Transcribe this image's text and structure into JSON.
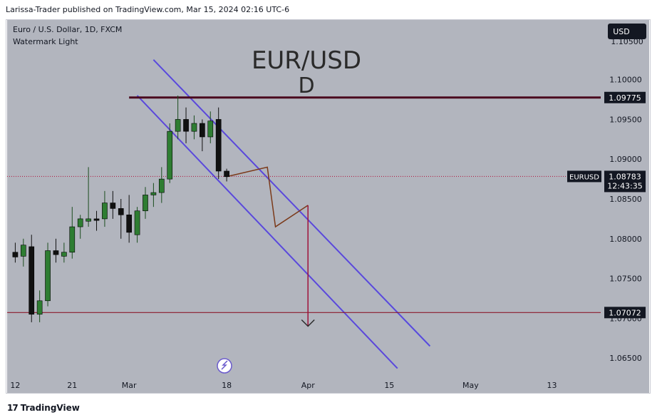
{
  "header": {
    "publisher_line": "Larissa-Trader published on TradingView.com, Mar 15, 2024 02:16 UTC-6"
  },
  "footer": {
    "brand": "TradingView",
    "logo_glyph": "17"
  },
  "chart_data": {
    "type": "candlestick",
    "symbol_line": "Euro / U.S. Dollar, 1D, FXCM",
    "watermark_label": "Watermark Light",
    "big_title": "EUR/USD",
    "big_subtitle": "D",
    "currency_badge": "USD",
    "y_ticks": [
      "1.10000",
      "1.09500",
      "1.09000",
      "1.08500",
      "1.08000",
      "1.07500",
      "1.07000",
      "1.06500"
    ],
    "y_tick_values": [
      1.1,
      1.095,
      1.09,
      1.085,
      1.08,
      1.075,
      1.07,
      1.065
    ],
    "y_top_partial": "1.10500",
    "ylim": [
      1.0625,
      1.1075
    ],
    "x_ticks": [
      {
        "label": "12",
        "t": 0
      },
      {
        "label": "21",
        "t": 7
      },
      {
        "label": "Mar",
        "t": 14
      },
      {
        "label": "18",
        "t": 26
      },
      {
        "label": "Apr",
        "t": 36
      },
      {
        "label": "15",
        "t": 46
      },
      {
        "label": "May",
        "t": 56
      },
      {
        "label": "13",
        "t": 66
      }
    ],
    "xlim": [
      -1,
      72
    ],
    "candles": [
      {
        "t": 0,
        "o": 1.0783,
        "h": 1.0795,
        "l": 1.077,
        "c": 1.0777
      },
      {
        "t": 1,
        "o": 1.0778,
        "h": 1.08,
        "l": 1.0765,
        "c": 1.0792
      },
      {
        "t": 2,
        "o": 1.079,
        "h": 1.0805,
        "l": 1.0695,
        "c": 1.0705
      },
      {
        "t": 3,
        "o": 1.0705,
        "h": 1.0735,
        "l": 1.0695,
        "c": 1.0722
      },
      {
        "t": 4,
        "o": 1.0722,
        "h": 1.0795,
        "l": 1.0715,
        "c": 1.0785
      },
      {
        "t": 5,
        "o": 1.0785,
        "h": 1.08,
        "l": 1.077,
        "c": 1.078
      },
      {
        "t": 6,
        "o": 1.0778,
        "h": 1.0795,
        "l": 1.077,
        "c": 1.0783
      },
      {
        "t": 7,
        "o": 1.0783,
        "h": 1.084,
        "l": 1.0775,
        "c": 1.0815
      },
      {
        "t": 8,
        "o": 1.0815,
        "h": 1.083,
        "l": 1.08,
        "c": 1.0825
      },
      {
        "t": 9,
        "o": 1.0822,
        "h": 1.089,
        "l": 1.0815,
        "c": 1.0825
      },
      {
        "t": 10,
        "o": 1.0825,
        "h": 1.0835,
        "l": 1.081,
        "c": 1.0823
      },
      {
        "t": 11,
        "o": 1.0825,
        "h": 1.086,
        "l": 1.0815,
        "c": 1.0845
      },
      {
        "t": 12,
        "o": 1.0845,
        "h": 1.086,
        "l": 1.0825,
        "c": 1.0838
      },
      {
        "t": 13,
        "o": 1.0838,
        "h": 1.085,
        "l": 1.08,
        "c": 1.083
      },
      {
        "t": 14,
        "o": 1.083,
        "h": 1.0855,
        "l": 1.0795,
        "c": 1.0808
      },
      {
        "t": 15,
        "o": 1.0805,
        "h": 1.084,
        "l": 1.0795,
        "c": 1.0835
      },
      {
        "t": 16,
        "o": 1.0835,
        "h": 1.0865,
        "l": 1.0825,
        "c": 1.0855
      },
      {
        "t": 17,
        "o": 1.0855,
        "h": 1.087,
        "l": 1.084,
        "c": 1.0858
      },
      {
        "t": 18,
        "o": 1.0858,
        "h": 1.089,
        "l": 1.0845,
        "c": 1.0875
      },
      {
        "t": 19,
        "o": 1.0875,
        "h": 1.0945,
        "l": 1.087,
        "c": 1.0935
      },
      {
        "t": 20,
        "o": 1.0935,
        "h": 1.098,
        "l": 1.0925,
        "c": 1.095
      },
      {
        "t": 21,
        "o": 1.095,
        "h": 1.0965,
        "l": 1.092,
        "c": 1.0935
      },
      {
        "t": 22,
        "o": 1.0935,
        "h": 1.0955,
        "l": 1.0925,
        "c": 1.0945
      },
      {
        "t": 23,
        "o": 1.0945,
        "h": 1.095,
        "l": 1.091,
        "c": 1.0928
      },
      {
        "t": 24,
        "o": 1.0928,
        "h": 1.096,
        "l": 1.092,
        "c": 1.0948
      },
      {
        "t": 25,
        "o": 1.095,
        "h": 1.0965,
        "l": 1.0875,
        "c": 1.0885
      },
      {
        "t": 26,
        "o": 1.0885,
        "h": 1.0888,
        "l": 1.0872,
        "c": 1.0878
      }
    ],
    "price_lines": [
      {
        "name": "resistance",
        "value": 1.09775,
        "label": "1.09775",
        "t_start": 14
      },
      {
        "name": "support",
        "value": 1.07072,
        "label": "1.07072"
      }
    ],
    "last_price": {
      "symbol": "EURUSD",
      "value": 1.08783,
      "label": "1.08783",
      "countdown": "12:43:35"
    },
    "channel_upper": [
      {
        "t": 17,
        "v": 1.1025
      },
      {
        "t": 51,
        "v": 1.0665
      }
    ],
    "channel_lower": [
      {
        "t": 15,
        "v": 1.098
      },
      {
        "t": 47,
        "v": 1.0637
      }
    ],
    "projection_path": [
      {
        "t": 26,
        "v": 1.0878
      },
      {
        "t": 31,
        "v": 1.089
      },
      {
        "t": 32,
        "v": 1.0815
      },
      {
        "t": 36,
        "v": 1.0842
      }
    ],
    "target_arrow": {
      "t": 36,
      "from": 1.0842,
      "to": 1.069
    },
    "colors": {
      "background": "#b2b5be",
      "up_fill": "#2e7d32",
      "up_wick": "#1b4d1e",
      "down_fill": "#111111",
      "resistance_line": "#4a0a1e",
      "support_line": "#8b1a2b",
      "channel": "#2962ff",
      "channel_inner": "#9c27b0",
      "projection": "#7b3a1a",
      "arrow": "#a0123a",
      "last_price_line": "#b0103a"
    }
  }
}
